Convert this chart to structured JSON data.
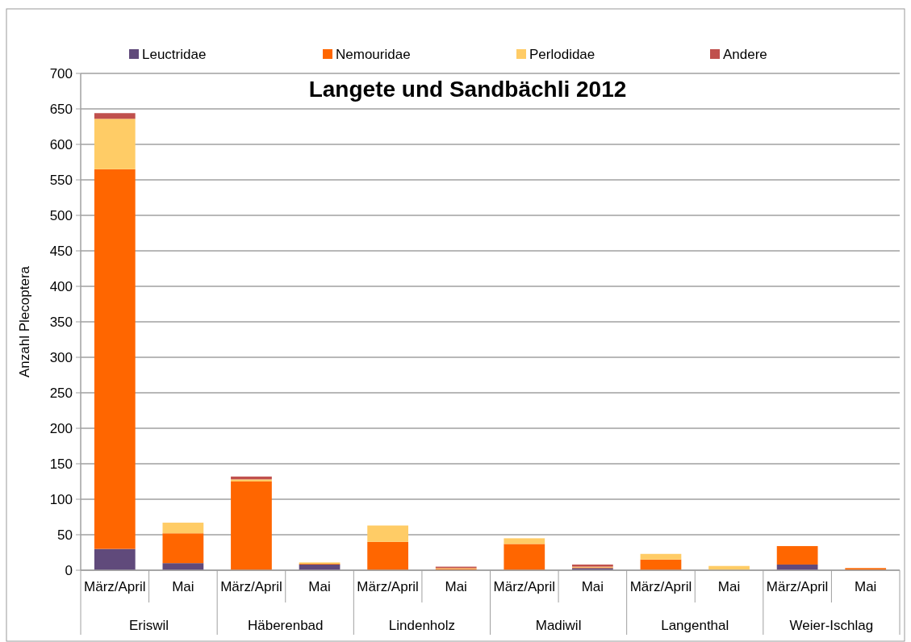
{
  "chart_data": {
    "type": "bar",
    "title": "Langete und Sandbächli 2012",
    "ylabel": "Anzahl Plecoptera",
    "categories": [
      "März/April",
      "Mai",
      "März/April",
      "Mai",
      "März/April",
      "Mai",
      "März/April",
      "Mai",
      "März/April",
      "Mai",
      "März/April",
      "Mai"
    ],
    "annotations": [
      "Eriswil",
      "Häberenbad",
      "Lindenholz",
      "Madiwil",
      "Langenthal",
      "Weier-Ischlag"
    ],
    "stacked": true,
    "ylim": [
      0,
      700
    ],
    "yticks": [
      0,
      50,
      100,
      150,
      200,
      250,
      300,
      350,
      400,
      450,
      500,
      550,
      600,
      650,
      700
    ],
    "grid": "y",
    "legend": "top",
    "series": [
      {
        "name": "Leuctridae",
        "color": "#604a7b",
        "values": [
          30,
          10,
          null,
          8,
          0,
          null,
          null,
          3,
          null,
          0,
          8,
          0
        ]
      },
      {
        "name": "Nemouridae",
        "color": "#ff6600",
        "values": [
          535,
          42,
          125,
          1,
          40,
          2,
          37,
          1,
          15,
          0,
          26,
          3
        ]
      },
      {
        "name": "Perlodidae",
        "color": "#ffcc66",
        "values": [
          71,
          15,
          3,
          2,
          23,
          1,
          8,
          1,
          8,
          6,
          0,
          0
        ]
      },
      {
        "name": "Andere",
        "color": "#c0504d",
        "values": [
          8,
          0,
          4,
          0,
          0,
          2,
          0,
          3,
          0,
          0,
          0,
          0
        ]
      }
    ]
  }
}
